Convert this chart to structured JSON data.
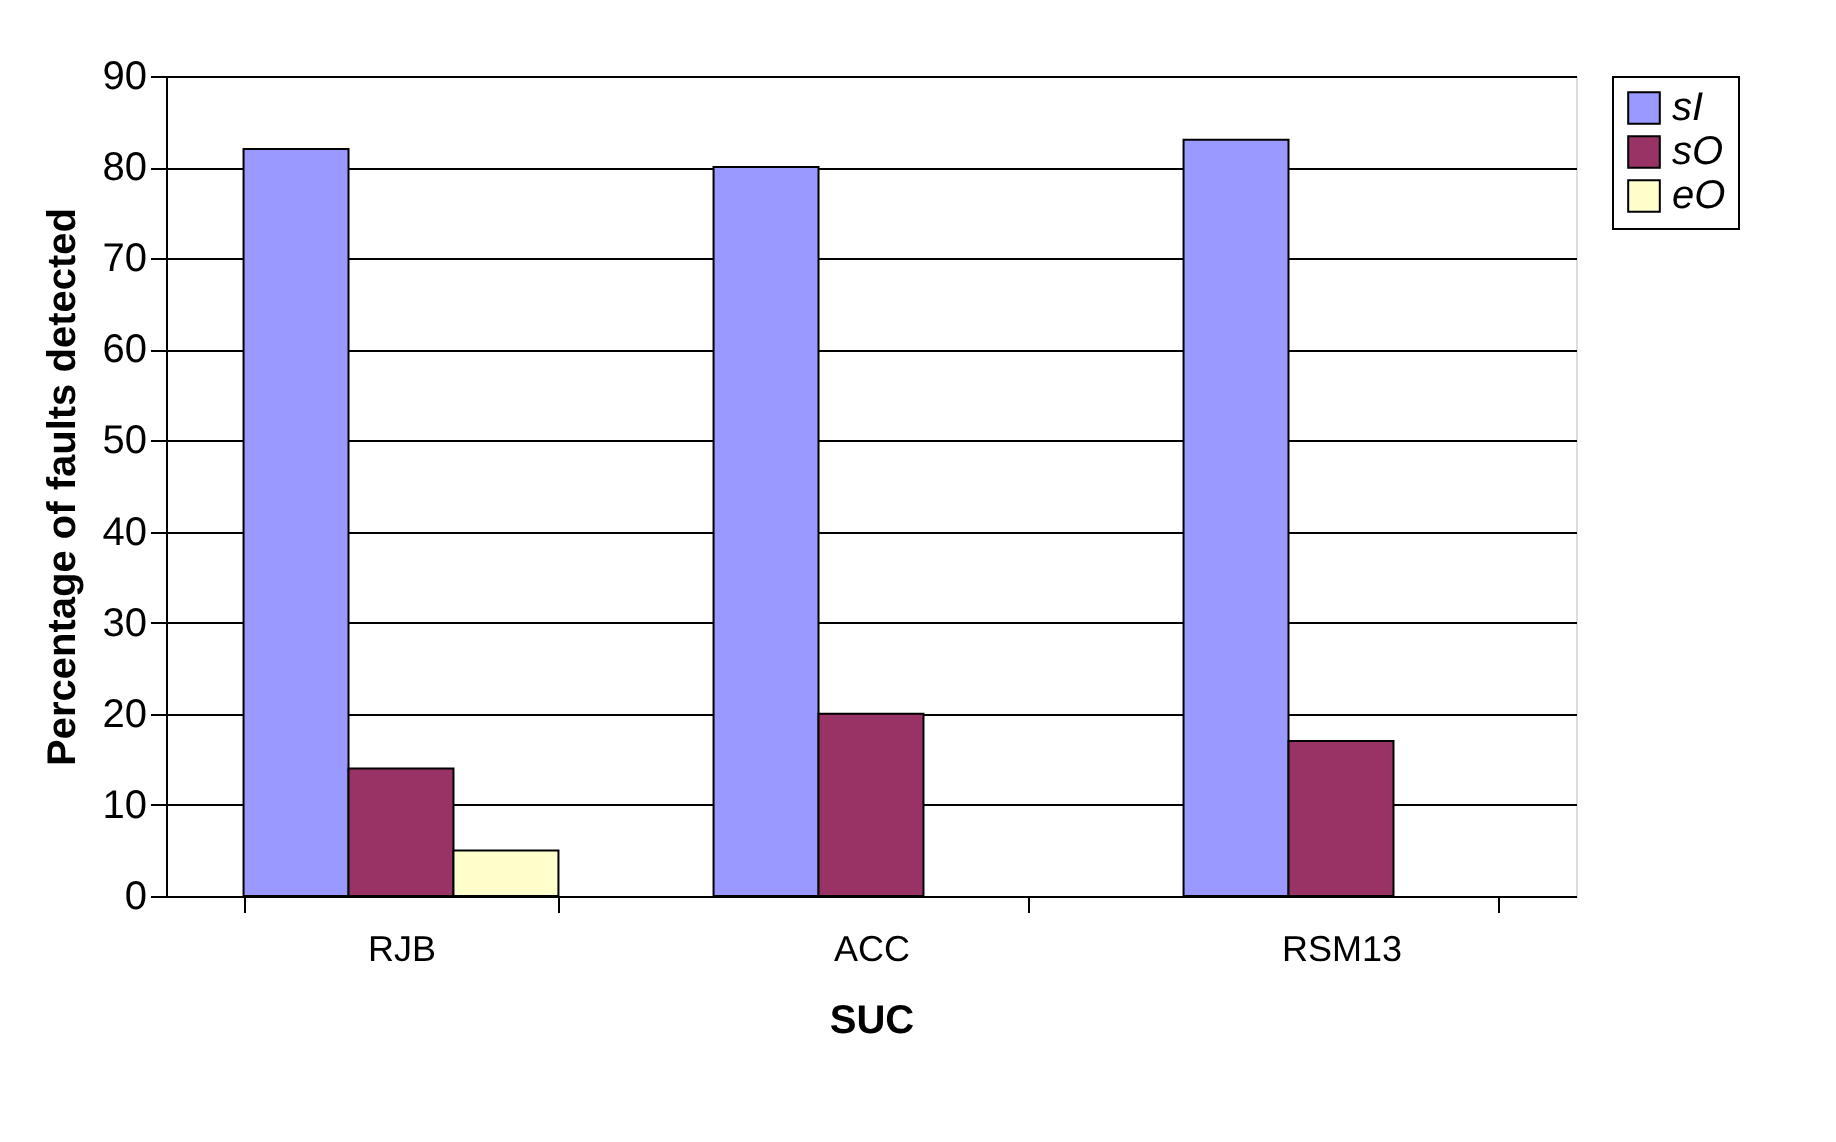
{
  "chart_data": {
    "type": "bar",
    "xlabel": "SUC",
    "ylabel": "Percentage of faults detected",
    "categories": [
      "RJB",
      "ACC",
      "RSM13"
    ],
    "series": [
      {
        "name": "sI",
        "color": "#9999ff",
        "values": [
          82,
          80,
          83
        ]
      },
      {
        "name": "sO",
        "color": "#993366",
        "values": [
          14,
          20,
          17
        ]
      },
      {
        "name": "eO",
        "color": "#ffffcc",
        "values": [
          5,
          null,
          null
        ]
      }
    ],
    "ylim": [
      0,
      90
    ],
    "yticks": [
      0,
      10,
      20,
      30,
      40,
      50,
      60,
      70,
      80,
      90
    ],
    "grid": "y",
    "legend": "right"
  }
}
